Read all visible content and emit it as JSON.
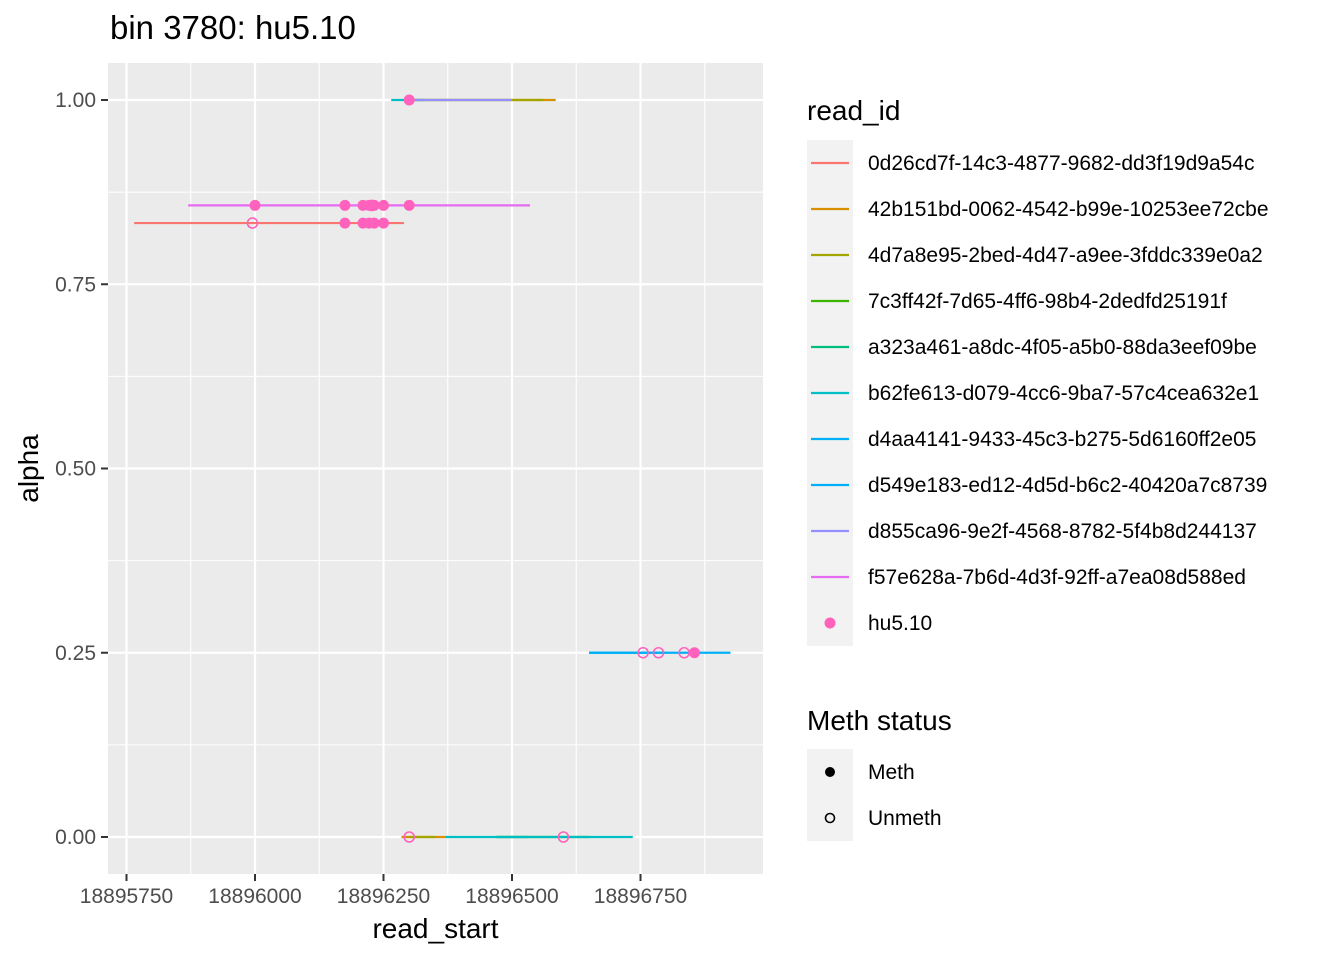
{
  "chart_data": {
    "type": "line",
    "title": "bin 3780: hu5.10",
    "xlabel": "read_start",
    "ylabel": "alpha",
    "xlim": [
      18895740,
      18896990
    ],
    "ylim": [
      -0.05,
      1.05
    ],
    "x_ticks": [
      18895750,
      18896000,
      18896250,
      18896500,
      18896750
    ],
    "x_tick_labels": [
      "18895750",
      "18896000",
      "18896250",
      "18896500",
      "18896750"
    ],
    "y_ticks": [
      0,
      0.25,
      0.5,
      0.75,
      1.0
    ],
    "y_tick_labels": [
      "0.00",
      "0.25",
      "0.50",
      "0.75",
      "1.00"
    ],
    "grid": true,
    "legend_position": "right",
    "legend_title": "read_id",
    "series": [
      {
        "name": "0d26cd7f-14c3-4877-9682-dd3f19d9a54c",
        "color": "#F8766D",
        "segments": [
          {
            "x_start": 18895765,
            "x_end": 18896290,
            "alpha": 0.833
          }
        ]
      },
      {
        "name": "42b151bd-0062-4542-b99e-10253ee72cbe",
        "color": "#D89000",
        "segments": [
          {
            "x_start": 18896300,
            "x_end": 18896585,
            "alpha": 1.0
          },
          {
            "x_start": 18896285,
            "x_end": 18896370,
            "alpha": 0.0
          }
        ]
      },
      {
        "name": "4d7a8e95-2bed-4d47-a9ee-3fddc339e0a2",
        "color": "#A3A500",
        "segments": [
          {
            "x_start": 18896300,
            "x_end": 18896560,
            "alpha": 1.0
          },
          {
            "x_start": 18896300,
            "x_end": 18896350,
            "alpha": 0.0
          }
        ]
      },
      {
        "name": "7c3ff42f-7d65-4ff6-98b4-2dedfd25191f",
        "color": "#39B600",
        "segments": [
          {
            "x_start": 18896470,
            "x_end": 18896650,
            "alpha": 0.0
          }
        ]
      },
      {
        "name": "a323a461-a8dc-4f05-a5b0-88da3eef09be",
        "color": "#00BF7D",
        "segments": [
          {
            "x_start": 18896470,
            "x_end": 18896530,
            "alpha": 0.0
          }
        ]
      },
      {
        "name": "b62fe613-d079-4cc6-9ba7-57c4cea632e1",
        "color": "#00BFC4",
        "segments": [
          {
            "x_start": 18896265,
            "x_end": 18896330,
            "alpha": 1.0
          },
          {
            "x_start": 18896370,
            "x_end": 18896735,
            "alpha": 0.0
          }
        ]
      },
      {
        "name": "d4aa4141-9433-45c3-b275-5d6160ff2e05",
        "color": "#00B0F6",
        "segments": [
          {
            "x_start": 18896650,
            "x_end": 18896800,
            "alpha": 0.25
          }
        ]
      },
      {
        "name": "d549e183-ed12-4d5d-b6c2-40420a7c8739",
        "color": "#00B0F6",
        "segments": [
          {
            "x_start": 18896650,
            "x_end": 18896925,
            "alpha": 0.25
          }
        ]
      },
      {
        "name": "d855ca96-9e2f-4568-8782-5f4b8d244137",
        "color": "#9590FF",
        "segments": [
          {
            "x_start": 18896300,
            "x_end": 18896500,
            "alpha": 1.0
          }
        ]
      },
      {
        "name": "f57e628a-7b6d-4d3f-92ff-a7ea08d588ed",
        "color": "#E76BF3",
        "segments": [
          {
            "x_start": 18895870,
            "x_end": 18896535,
            "alpha": 0.857
          }
        ]
      }
    ],
    "points": {
      "name": "hu5.10",
      "color": "#FF62BC",
      "meth": [
        {
          "x": 18896300,
          "y": 1.0
        },
        {
          "x": 18896000,
          "y": 0.857
        },
        {
          "x": 18896175,
          "y": 0.857
        },
        {
          "x": 18896210,
          "y": 0.857
        },
        {
          "x": 18896222,
          "y": 0.857
        },
        {
          "x": 18896232,
          "y": 0.857
        },
        {
          "x": 18896250,
          "y": 0.857
        },
        {
          "x": 18896300,
          "y": 0.857
        },
        {
          "x": 18896175,
          "y": 0.833
        },
        {
          "x": 18896210,
          "y": 0.833
        },
        {
          "x": 18896222,
          "y": 0.833
        },
        {
          "x": 18896232,
          "y": 0.833
        },
        {
          "x": 18896250,
          "y": 0.833
        },
        {
          "x": 18896855,
          "y": 0.25
        }
      ],
      "unmeth": [
        {
          "x": 18896227,
          "y": 0.857
        },
        {
          "x": 18895995,
          "y": 0.833
        },
        {
          "x": 18896755,
          "y": 0.25
        },
        {
          "x": 18896785,
          "y": 0.25
        },
        {
          "x": 18896835,
          "y": 0.25
        },
        {
          "x": 18896300,
          "y": 0.0
        },
        {
          "x": 18896600,
          "y": 0.0
        }
      ]
    },
    "legend_points_label": "hu5.10",
    "meth_legend": {
      "title": "Meth status",
      "items": [
        {
          "label": "Meth",
          "shape": "filled-circle"
        },
        {
          "label": "Unmeth",
          "shape": "open-circle"
        }
      ]
    }
  }
}
